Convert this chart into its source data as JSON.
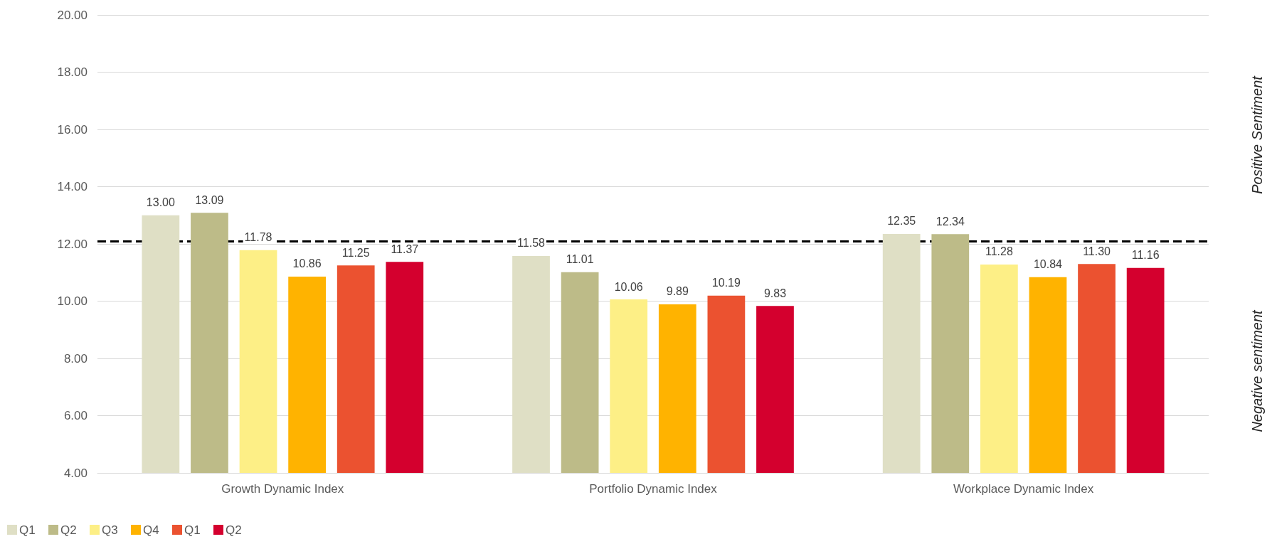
{
  "chart_data": {
    "type": "bar",
    "categories": [
      "Growth Dynamic Index",
      "Portfolio Dynamic Index",
      "Workplace Dynamic Index"
    ],
    "series": [
      {
        "name": "Q1",
        "color": "#dfdfc5",
        "values": [
          13.0,
          11.58,
          12.35
        ],
        "value_labels": [
          "13.00",
          "11.58",
          "12.35"
        ]
      },
      {
        "name": "Q2",
        "color": "#bdbb88",
        "values": [
          13.09,
          11.01,
          12.34
        ],
        "value_labels": [
          "13.09",
          "11.01",
          "12.34"
        ]
      },
      {
        "name": "Q3",
        "color": "#fdef86",
        "values": [
          11.78,
          10.06,
          11.28
        ],
        "value_labels": [
          "11.78",
          "10.06",
          "11.28"
        ]
      },
      {
        "name": "Q4",
        "color": "#ffb300",
        "values": [
          10.86,
          9.89,
          10.84
        ],
        "value_labels": [
          "10.86",
          "9.89",
          "10.84"
        ]
      },
      {
        "name": "Q1",
        "color": "#eb5230",
        "values": [
          11.25,
          10.19,
          11.3
        ],
        "value_labels": [
          "11.25",
          "10.19",
          "11.30"
        ]
      },
      {
        "name": "Q2",
        "color": "#d4002e",
        "values": [
          11.37,
          9.83,
          11.16
        ],
        "value_labels": [
          "11.37",
          "9.83",
          "11.16"
        ]
      }
    ],
    "ylim": [
      4,
      20
    ],
    "yticks": [
      {
        "value": 4,
        "label": "4.00"
      },
      {
        "value": 6,
        "label": "6.00"
      },
      {
        "value": 8,
        "label": "8.00"
      },
      {
        "value": 10,
        "label": "10.00"
      },
      {
        "value": 12,
        "label": "12.00"
      },
      {
        "value": 14,
        "label": "14.00"
      },
      {
        "value": 16,
        "label": "16.00"
      },
      {
        "value": 18,
        "label": "18.00"
      },
      {
        "value": 20,
        "label": "20.00"
      }
    ],
    "grid": "y",
    "legend": "bottom left",
    "ref_lines": [
      {
        "axis": "y",
        "value": 12.1,
        "color": "#000000",
        "line_style": "dashed"
      }
    ],
    "annotations": [
      "Positive Sentiment",
      "Negative sentiment"
    ]
  }
}
